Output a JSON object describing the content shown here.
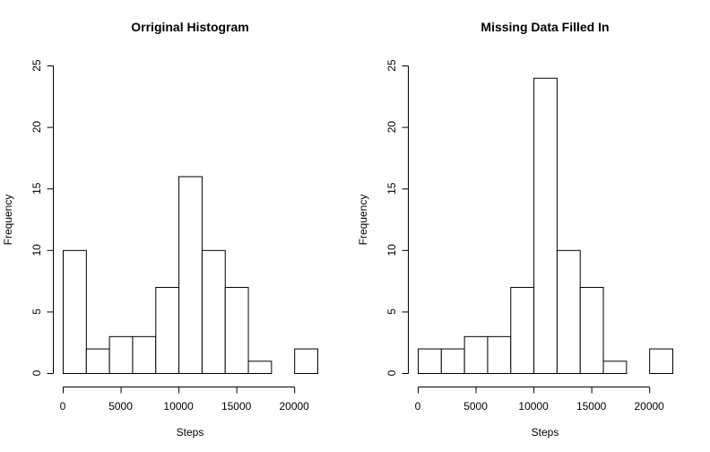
{
  "chart_data": [
    {
      "type": "bar",
      "title": "Orriginal Histogram",
      "xlabel": "Steps",
      "ylabel": "Frequency",
      "bin_edges": [
        0,
        2000,
        4000,
        6000,
        8000,
        10000,
        12000,
        14000,
        16000,
        18000,
        20000,
        22000
      ],
      "values": [
        10,
        2,
        3,
        3,
        7,
        16,
        10,
        7,
        1,
        0,
        2
      ],
      "xlim": [
        0,
        22000
      ],
      "ylim": [
        0,
        25
      ],
      "x_ticks": [
        0,
        5000,
        10000,
        15000,
        20000
      ],
      "y_ticks": [
        0,
        5,
        10,
        15,
        20,
        25
      ],
      "grid": false
    },
    {
      "type": "bar",
      "title": "Missing Data Filled In",
      "xlabel": "Steps",
      "ylabel": "Frequency",
      "bin_edges": [
        0,
        2000,
        4000,
        6000,
        8000,
        10000,
        12000,
        14000,
        16000,
        18000,
        20000,
        22000
      ],
      "values": [
        2,
        2,
        3,
        3,
        7,
        24,
        10,
        7,
        1,
        0,
        2
      ],
      "xlim": [
        0,
        22000
      ],
      "ylim": [
        0,
        25
      ],
      "x_ticks": [
        0,
        5000,
        10000,
        15000,
        20000
      ],
      "y_ticks": [
        0,
        5,
        10,
        15,
        20,
        25
      ],
      "grid": false
    }
  ]
}
